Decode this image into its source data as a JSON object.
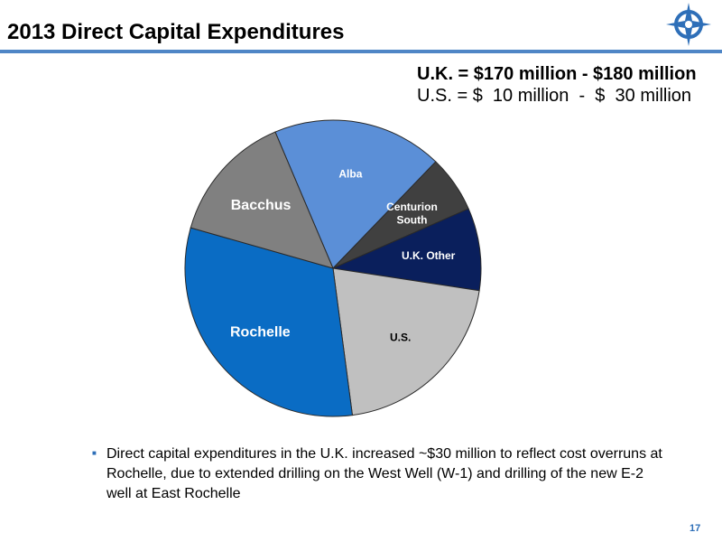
{
  "slide": {
    "title": "2013 Direct Capital Expenditures",
    "uk_range": "U.K. = $170 million - $180 million",
    "us_range": "U.S. = $  10 million  -  $  30 million",
    "note": "Direct capital expenditures in the U.K. increased ~$30 million to reflect cost overruns at Rochelle, due to extended drilling on the West Well (W-1) and drilling of the new E-2 well at East Rochelle",
    "page_number": "17",
    "bullet_icon": "square-bullet-icon",
    "logo_icon": "compass-star-logo-icon",
    "accent_color": "#4f86c6"
  },
  "chart_data": {
    "type": "pie",
    "title": "",
    "slices": [
      {
        "label": "Alba",
        "value": 18.6,
        "color": "#5b8fd7",
        "label_color": "#ffffff"
      },
      {
        "label": "Centurion\nSouth",
        "value": 6.2,
        "color": "#404040",
        "label_color": "#ffffff"
      },
      {
        "label": "U.K. Other",
        "value": 9.0,
        "color": "#0a1f5c",
        "label_color": "#ffffff"
      },
      {
        "label": "U.S.",
        "value": 20.5,
        "color": "#c0c0c0",
        "label_color": "#000000"
      },
      {
        "label": "Rochelle",
        "value": 31.5,
        "color": "#0a6cc4",
        "label_color": "#ffffff"
      },
      {
        "label": "Bacchus",
        "value": 14.2,
        "color": "#808080",
        "label_color": "#ffffff"
      }
    ]
  }
}
